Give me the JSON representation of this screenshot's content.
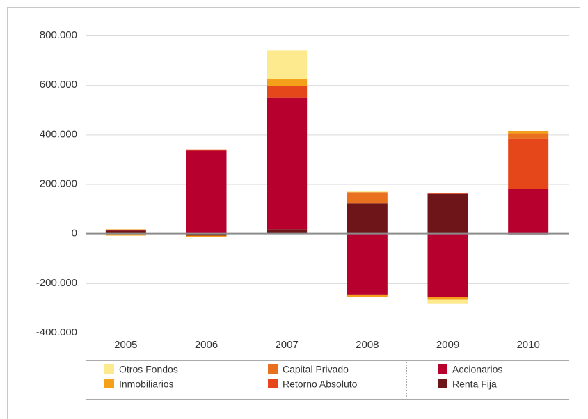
{
  "chart_data": {
    "type": "bar",
    "stacked": true,
    "categories": [
      "2005",
      "2006",
      "2007",
      "2008",
      "2009",
      "2010"
    ],
    "series": [
      {
        "name": "Renta Fija",
        "color": "#6e1519",
        "values": [
          12000,
          -8000,
          18000,
          122000,
          160000,
          -3000
        ]
      },
      {
        "name": "Accionarios",
        "color": "#b8002f",
        "values": [
          3000,
          335000,
          530000,
          -248000,
          -255000,
          180000
        ]
      },
      {
        "name": "Retorno Absoluto",
        "color": "#e5471b",
        "values": [
          0,
          3000,
          47000,
          0,
          3000,
          205000
        ]
      },
      {
        "name": "Capital Privado",
        "color": "#e8701e",
        "values": [
          2000,
          2000,
          0,
          45000,
          0,
          20000
        ]
      },
      {
        "name": "Inmobiliarios",
        "color": "#f5a01a",
        "values": [
          -8000,
          -5000,
          30000,
          -8000,
          -12000,
          10000
        ]
      },
      {
        "name": "Otros Fondos",
        "color": "#fde98e",
        "values": [
          2000,
          0,
          115000,
          3000,
          -17000,
          0
        ]
      }
    ],
    "ylim": [
      -400000,
      800000
    ],
    "yticks": [
      {
        "value": -400000,
        "label": "-400.000"
      },
      {
        "value": -200000,
        "label": "-200.000"
      },
      0,
      {
        "value": 200000,
        "label": "200.000"
      },
      {
        "value": 400000,
        "label": "400.000"
      },
      {
        "value": 600000,
        "label": "600.000"
      },
      {
        "value": 800000,
        "label": "800.000"
      }
    ],
    "grid": true,
    "legend": "bottom"
  }
}
